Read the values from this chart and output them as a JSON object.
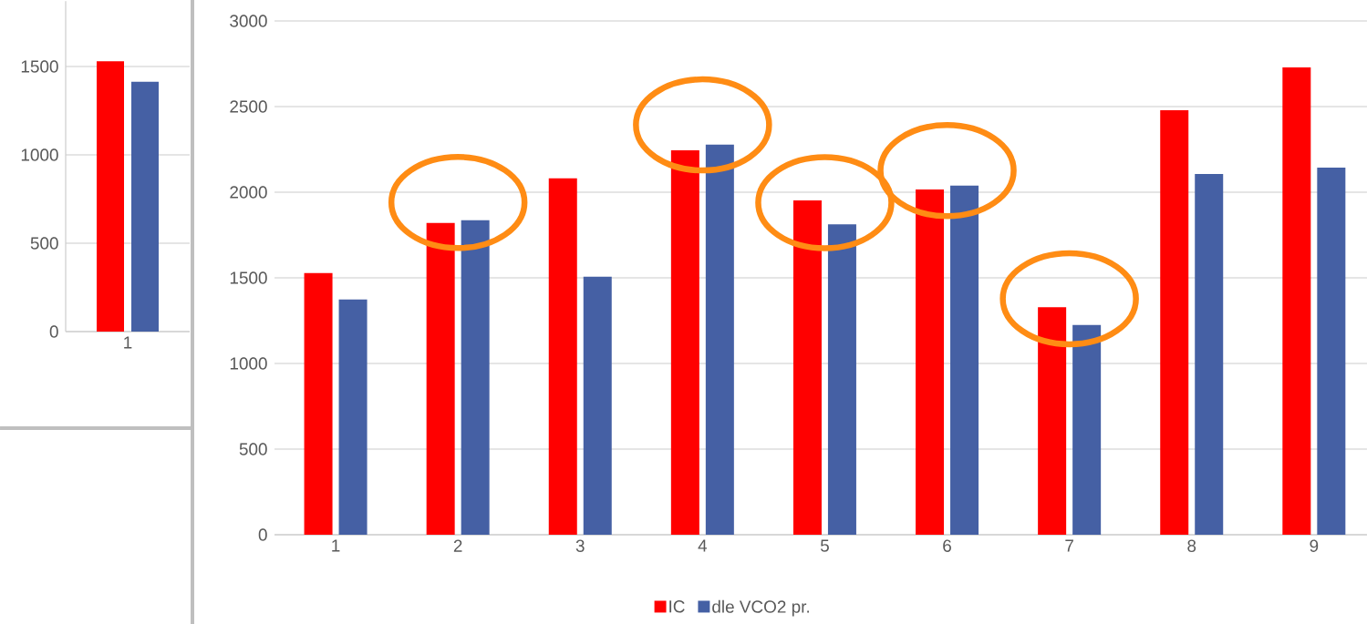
{
  "chart_data": [
    {
      "type": "bar",
      "categories": [
        "1"
      ],
      "series": [
        {
          "color": "#ff0000",
          "values": [
            1529
          ]
        },
        {
          "color": "#4560a4",
          "values": [
            1414
          ]
        }
      ],
      "ylim": [
        0,
        1870
      ],
      "yticks": [
        0,
        500,
        1000,
        1500
      ],
      "grid": "y",
      "legend": false
    },
    {
      "type": "bar",
      "categories": [
        "1",
        "2",
        "3",
        "4",
        "5",
        "6",
        "7",
        "8",
        "9"
      ],
      "series": [
        {
          "name": "IC",
          "color": "#ff0000",
          "values": [
            1528,
            1821,
            2081,
            2245,
            1952,
            2016,
            1329,
            2478,
            2729
          ]
        },
        {
          "name": "dle VCO2 pr.",
          "color": "#4560a4",
          "values": [
            1374,
            1836,
            1506,
            2278,
            1813,
            2038,
            1224,
            2106,
            2143
          ]
        }
      ],
      "ylim": [
        0,
        3000
      ],
      "yticks": [
        0,
        500,
        1000,
        1500,
        2000,
        2500,
        3000
      ],
      "grid": "y",
      "legend": "bottom"
    }
  ]
}
